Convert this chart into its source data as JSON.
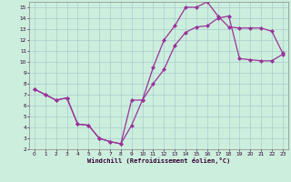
{
  "xlabel": "Windchill (Refroidissement éolien,°C)",
  "bg_color": "#cceedd",
  "grid_color": "#aacccc",
  "line_color": "#993399",
  "xlim": [
    -0.5,
    23.5
  ],
  "ylim": [
    2,
    15.5
  ],
  "xticks": [
    0,
    1,
    2,
    3,
    4,
    5,
    6,
    7,
    8,
    9,
    10,
    11,
    12,
    13,
    14,
    15,
    16,
    17,
    18,
    19,
    20,
    21,
    22,
    23
  ],
  "yticks": [
    2,
    3,
    4,
    5,
    6,
    7,
    8,
    9,
    10,
    11,
    12,
    13,
    14,
    15
  ],
  "curve1_x": [
    0,
    1,
    2,
    3,
    4,
    5,
    6,
    7,
    8,
    9,
    10,
    11,
    12,
    13,
    14,
    15,
    16,
    17,
    18,
    19,
    20,
    21,
    22,
    23
  ],
  "curve1_y": [
    7.5,
    7.0,
    6.5,
    6.7,
    4.3,
    4.2,
    3.0,
    2.7,
    2.5,
    6.5,
    6.5,
    9.5,
    12.0,
    13.3,
    15.0,
    15.0,
    15.5,
    14.2,
    13.2,
    13.1,
    13.1,
    13.1,
    12.8,
    10.8
  ],
  "curve2_x": [
    0,
    1,
    2,
    3,
    4,
    5,
    6,
    7,
    8,
    9,
    10,
    11,
    12,
    13,
    14,
    15,
    16,
    17,
    18,
    19,
    20,
    21,
    22,
    23
  ],
  "curve2_y": [
    7.5,
    7.0,
    6.5,
    6.7,
    4.3,
    4.2,
    3.0,
    2.7,
    2.5,
    4.2,
    6.5,
    8.0,
    9.3,
    11.5,
    12.7,
    13.2,
    13.3,
    14.0,
    14.2,
    10.3,
    10.2,
    10.1,
    10.1,
    10.7
  ],
  "marker": "D",
  "markersize": 2.5,
  "linewidth": 0.9
}
